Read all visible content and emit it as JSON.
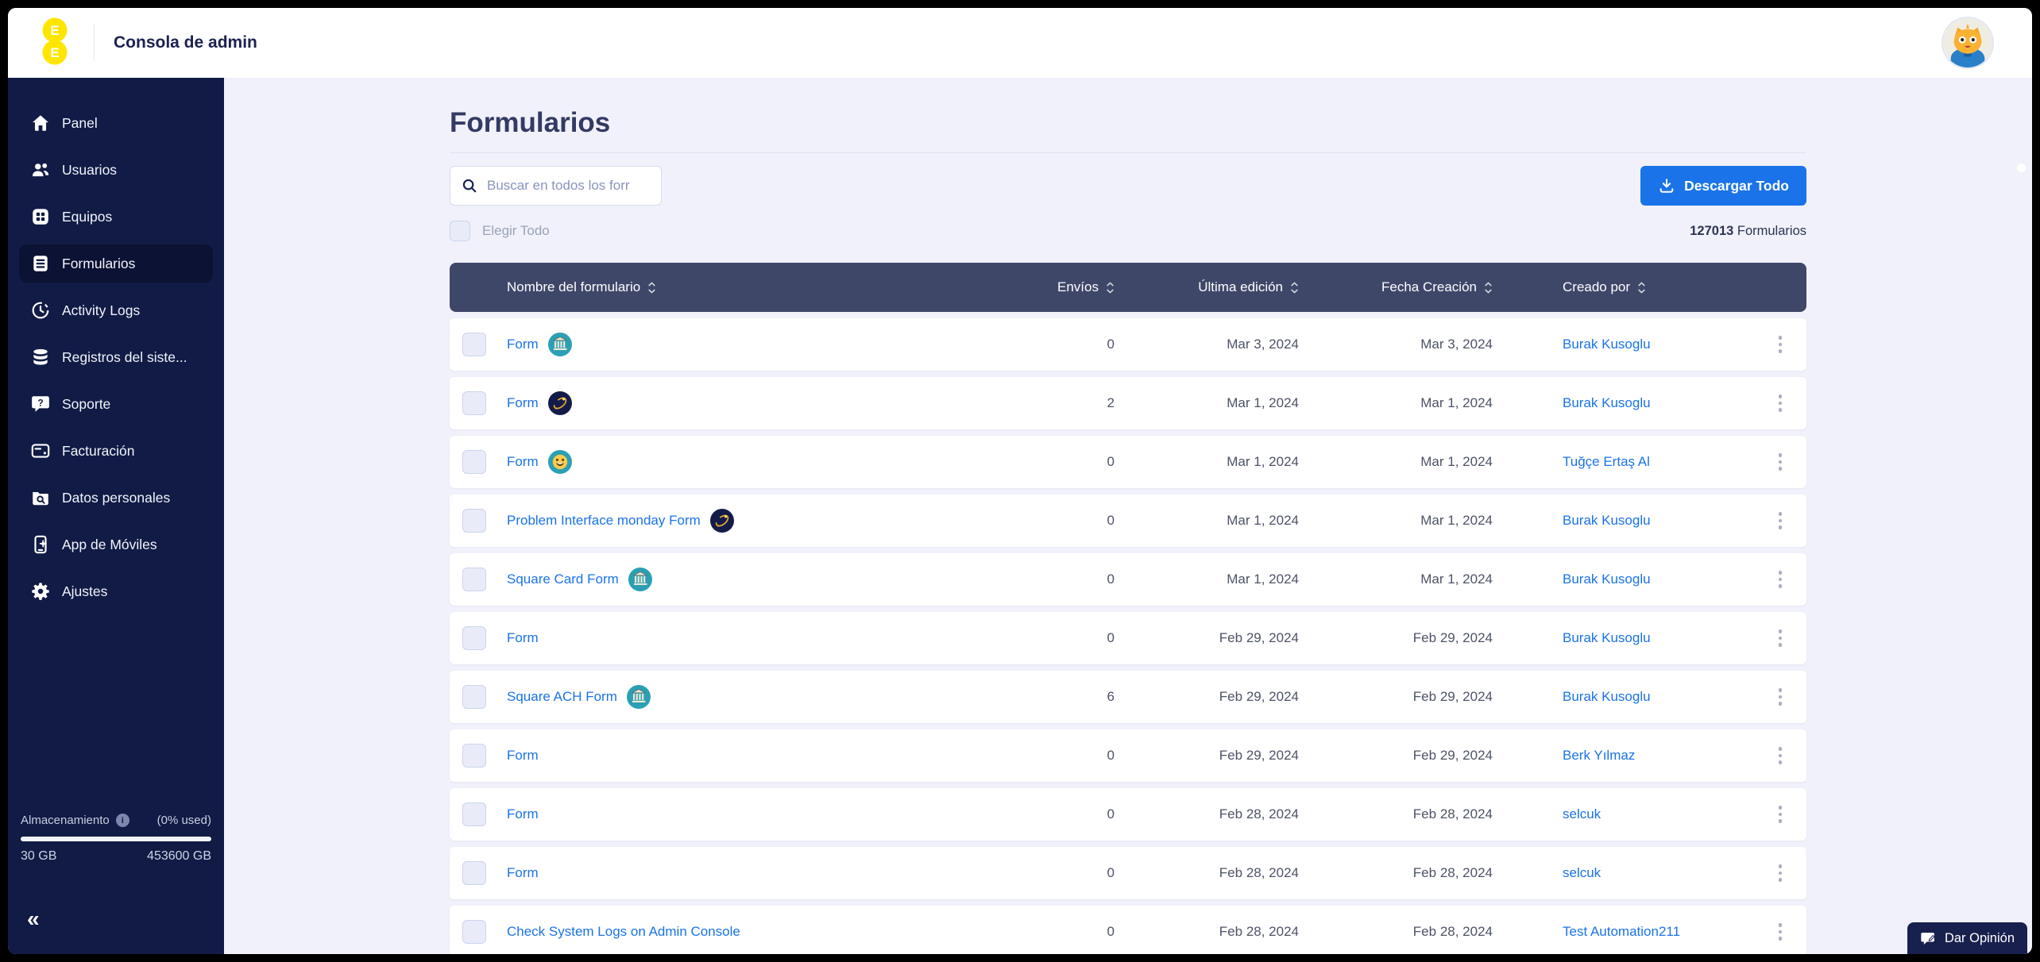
{
  "header": {
    "title": "Consola de admin",
    "logo_letters": "EE"
  },
  "sidebar": {
    "items": [
      {
        "label": "Panel",
        "icon": "home-icon",
        "active": false
      },
      {
        "label": "Usuarios",
        "icon": "users-icon",
        "active": false
      },
      {
        "label": "Equipos",
        "icon": "teams-icon",
        "active": false
      },
      {
        "label": "Formularios",
        "icon": "forms-icon",
        "active": true
      },
      {
        "label": "Activity Logs",
        "icon": "clock-icon",
        "active": false
      },
      {
        "label": "Registros del siste...",
        "icon": "database-icon",
        "active": false
      },
      {
        "label": "Soporte",
        "icon": "support-icon",
        "active": false
      },
      {
        "label": "Facturación",
        "icon": "billing-icon",
        "active": false
      },
      {
        "label": "Datos personales",
        "icon": "personal-data-icon",
        "active": false
      },
      {
        "label": "App de Móviles",
        "icon": "mobile-icon",
        "active": false
      },
      {
        "label": "Ajustes",
        "icon": "settings-icon",
        "active": false
      }
    ],
    "storage": {
      "label": "Almacenamiento",
      "percent_used": "(0% used)",
      "used": "30 GB",
      "total": "453600 GB"
    },
    "collapse_glyph": "«"
  },
  "main": {
    "title": "Formularios",
    "search_placeholder": "Buscar en todos los forr",
    "select_all_label": "Elegir Todo",
    "download_label": "Descargar Todo",
    "count_number": "127013",
    "count_label": "Formularios",
    "table": {
      "headers": [
        "Nombre del formulario",
        "Envíos",
        "Última edición",
        "Fecha Creación",
        "Creado por"
      ],
      "rows": [
        {
          "name": "Form",
          "avatar": "bank",
          "submissions": "0",
          "last_edit": "Mar 3, 2024",
          "created": "Mar 3, 2024",
          "creator": "Burak Kusoglu"
        },
        {
          "name": "Form",
          "avatar": "comet",
          "submissions": "2",
          "last_edit": "Mar 1, 2024",
          "created": "Mar 1, 2024",
          "creator": "Burak Kusoglu"
        },
        {
          "name": "Form",
          "avatar": "smiley",
          "submissions": "0",
          "last_edit": "Mar 1, 2024",
          "created": "Mar 1, 2024",
          "creator": "Tuğçe Ertaş Al"
        },
        {
          "name": "Problem Interface monday Form",
          "avatar": "comet",
          "submissions": "0",
          "last_edit": "Mar 1, 2024",
          "created": "Mar 1, 2024",
          "creator": "Burak Kusoglu"
        },
        {
          "name": "Square Card Form",
          "avatar": "bank",
          "submissions": "0",
          "last_edit": "Mar 1, 2024",
          "created": "Mar 1, 2024",
          "creator": "Burak Kusoglu"
        },
        {
          "name": "Form",
          "avatar": null,
          "submissions": "0",
          "last_edit": "Feb 29, 2024",
          "created": "Feb 29, 2024",
          "creator": "Burak Kusoglu"
        },
        {
          "name": "Square ACH Form",
          "avatar": "bank",
          "submissions": "6",
          "last_edit": "Feb 29, 2024",
          "created": "Feb 29, 2024",
          "creator": "Burak Kusoglu"
        },
        {
          "name": "Form",
          "avatar": null,
          "submissions": "0",
          "last_edit": "Feb 29, 2024",
          "created": "Feb 29, 2024",
          "creator": "Berk Yılmaz"
        },
        {
          "name": "Form",
          "avatar": null,
          "submissions": "0",
          "last_edit": "Feb 28, 2024",
          "created": "Feb 28, 2024",
          "creator": "selcuk"
        },
        {
          "name": "Form",
          "avatar": null,
          "submissions": "0",
          "last_edit": "Feb 28, 2024",
          "created": "Feb 28, 2024",
          "creator": "selcuk"
        },
        {
          "name": "Check System Logs on Admin Console",
          "avatar": null,
          "submissions": "0",
          "last_edit": "Feb 28, 2024",
          "created": "Feb 28, 2024",
          "creator": "Test Automation211"
        }
      ]
    }
  },
  "feedback": {
    "label": "Dar Opinión"
  },
  "colors": {
    "sidebar_navy": "#111b46",
    "sidebar_active": "#0b1233",
    "table_header_slate": "#3f4769",
    "accent_blue": "#1a73e8",
    "link_blue": "#1a73e8",
    "main_background": "#f0f1fa",
    "logo_yellow": "#ffe600",
    "avatar_teal": "#2ba0b4",
    "feedback_navy": "#18214d"
  }
}
